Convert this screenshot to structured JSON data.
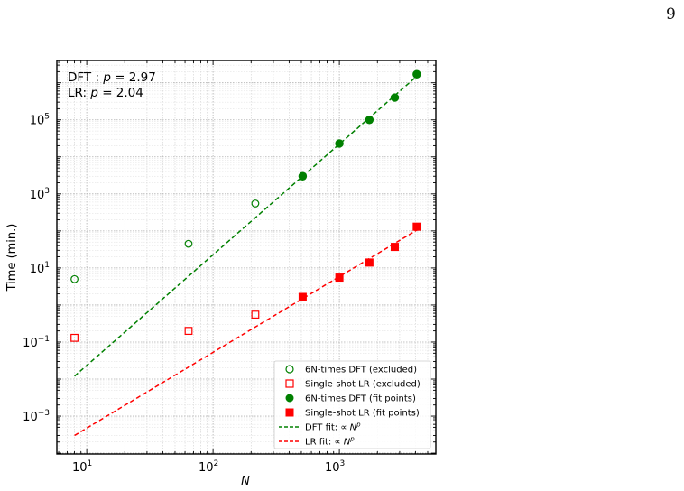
{
  "page": {
    "number": "9"
  },
  "chart_data": {
    "type": "scatter",
    "xlabel": "N",
    "ylabel": "Time (min.)",
    "xscale": "log",
    "yscale": "log",
    "xlim": [
      5.8,
      5800
    ],
    "ylim": [
      9.5e-05,
      4000000
    ],
    "grid": true,
    "legend_position": "lower-right",
    "x_ticks": [
      {
        "base": "10",
        "exp": "1",
        "value": 10
      },
      {
        "base": "10",
        "exp": "2",
        "value": 100
      },
      {
        "base": "10",
        "exp": "3",
        "value": 1000
      }
    ],
    "y_ticks": [
      {
        "base": "10",
        "exp": "−3",
        "value": 0.001
      },
      {
        "base": "10",
        "exp": "−1",
        "value": 0.1
      },
      {
        "base": "10",
        "exp": "1",
        "value": 10
      },
      {
        "base": "10",
        "exp": "3",
        "value": 1000
      },
      {
        "base": "10",
        "exp": "5",
        "value": 100000
      }
    ],
    "annotations": [
      {
        "prefix": "DFT : ",
        "var": "p",
        "suffix": " = 2.97"
      },
      {
        "prefix": "LR: ",
        "var": "p",
        "suffix": " = 2.04"
      }
    ],
    "series": [
      {
        "name": "6N-times DFT (excluded)",
        "color": "#008000",
        "marker": "circle-open",
        "x": [
          8,
          64,
          216
        ],
        "y": [
          5,
          45,
          550
        ]
      },
      {
        "name": "Single-shot LR (excluded)",
        "color": "#ff0000",
        "marker": "square-open",
        "x": [
          8,
          64,
          216
        ],
        "y": [
          0.13,
          0.2,
          0.55
        ]
      },
      {
        "name": "6N-times DFT (fit points)",
        "color": "#008000",
        "marker": "circle-filled",
        "x": [
          512,
          1000,
          1728,
          2744,
          4096
        ],
        "y": [
          3000,
          23000,
          100000,
          400000,
          1700000
        ]
      },
      {
        "name": "Single-shot LR (fit points)",
        "color": "#ff0000",
        "marker": "square-filled",
        "x": [
          512,
          1000,
          1728,
          2744,
          4096
        ],
        "y": [
          1.65,
          5.5,
          14,
          37,
          130
        ]
      },
      {
        "name": "DFT fit: ∝ N^p",
        "color": "#008000",
        "marker": "dashed-line",
        "x": [
          8,
          4096
        ],
        "y": [
          0.012,
          1500000
        ]
      },
      {
        "name": "LR fit: ∝ N^p",
        "color": "#ff0000",
        "marker": "dashed-line",
        "x": [
          8,
          4096
        ],
        "y": [
          0.0003,
          105
        ]
      }
    ],
    "legend": [
      {
        "label": "6N-times DFT (excluded)",
        "italic_prefix": "6N",
        "text": "-times DFT (excluded)"
      },
      {
        "label": "Single-shot LR (excluded)",
        "italic_prefix": "",
        "text": "Single-shot LR (excluded)"
      },
      {
        "label": "6N-times DFT (fit points)",
        "italic_prefix": "6N",
        "text": "-times DFT (fit points)"
      },
      {
        "label": "Single-shot LR (fit points)",
        "italic_prefix": "",
        "text": "Single-shot LR (fit points)"
      },
      {
        "label": "DFT fit: ∝ N^p",
        "text": "DFT fit: ∝ ",
        "var": "N",
        "sup": "p"
      },
      {
        "label": "LR fit: ∝ N^p",
        "text": "LR fit: ∝ ",
        "var": "N",
        "sup": "p"
      }
    ]
  }
}
